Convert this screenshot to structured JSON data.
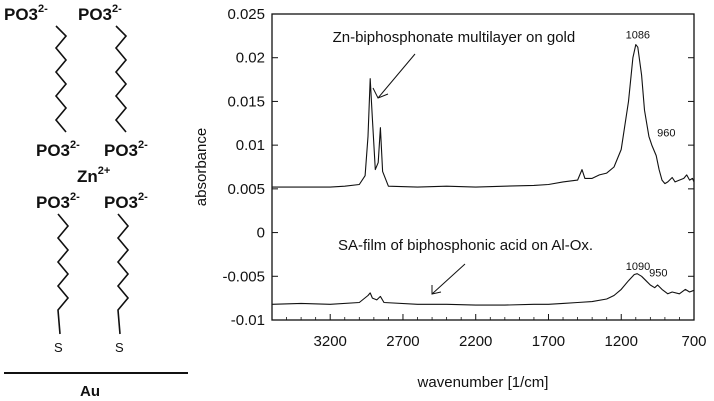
{
  "schematic": {
    "top_groups": [
      "PO3",
      "PO3"
    ],
    "middle_groups": [
      "PO3",
      "PO3"
    ],
    "lower_groups": [
      "PO3",
      "PO3"
    ],
    "charge": "2-",
    "zinc": "Zn",
    "zinc_charge": "2+",
    "sulfur_labels": [
      "S",
      "S"
    ],
    "substrate": "Au"
  },
  "chart_data": {
    "type": "line",
    "title": "",
    "xlabel": "wavenumber [1/cm]",
    "ylabel": "absorbance",
    "xlim": [
      3600,
      700
    ],
    "ylim": [
      -0.01,
      0.025
    ],
    "x_reversed": true,
    "grid": false,
    "x_ticks": [
      "3200",
      "2700",
      "2200",
      "1700",
      "1200",
      "700"
    ],
    "y_ticks": [
      "0.025",
      "0.02",
      "0.015",
      "0.01",
      "0.005",
      "0",
      "-0.005",
      "-0.01"
    ],
    "series": [
      {
        "name": "Zn-biphosphonate multilayer on gold",
        "points": [
          [
            3600,
            0.0052
          ],
          [
            3400,
            0.0052
          ],
          [
            3200,
            0.0052
          ],
          [
            3100,
            0.0053
          ],
          [
            3000,
            0.0055
          ],
          [
            2960,
            0.0065
          ],
          [
            2940,
            0.011
          ],
          [
            2925,
            0.0176
          ],
          [
            2910,
            0.013
          ],
          [
            2890,
            0.0072
          ],
          [
            2870,
            0.008
          ],
          [
            2855,
            0.012
          ],
          [
            2840,
            0.007
          ],
          [
            2800,
            0.0053
          ],
          [
            2600,
            0.0052
          ],
          [
            2400,
            0.0053
          ],
          [
            2200,
            0.0052
          ],
          [
            2000,
            0.0053
          ],
          [
            1800,
            0.0054
          ],
          [
            1700,
            0.0055
          ],
          [
            1600,
            0.0058
          ],
          [
            1500,
            0.006
          ],
          [
            1470,
            0.0072
          ],
          [
            1450,
            0.0062
          ],
          [
            1400,
            0.0062
          ],
          [
            1350,
            0.0066
          ],
          [
            1300,
            0.0068
          ],
          [
            1250,
            0.0075
          ],
          [
            1200,
            0.0095
          ],
          [
            1150,
            0.015
          ],
          [
            1120,
            0.02
          ],
          [
            1100,
            0.0215
          ],
          [
            1086,
            0.0212
          ],
          [
            1060,
            0.018
          ],
          [
            1040,
            0.014
          ],
          [
            1010,
            0.011
          ],
          [
            990,
            0.01
          ],
          [
            960,
            0.0088
          ],
          [
            940,
            0.0072
          ],
          [
            920,
            0.006
          ],
          [
            900,
            0.0056
          ],
          [
            880,
            0.0058
          ],
          [
            850,
            0.0063
          ],
          [
            830,
            0.0058
          ],
          [
            800,
            0.006
          ],
          [
            770,
            0.0062
          ],
          [
            750,
            0.0066
          ],
          [
            730,
            0.006
          ],
          [
            710,
            0.0062
          ],
          [
            700,
            0.0058
          ]
        ]
      },
      {
        "name": "SA-film of biphosphonic acid on Al-Ox.",
        "points": [
          [
            3600,
            -0.0082
          ],
          [
            3400,
            -0.0081
          ],
          [
            3200,
            -0.0082
          ],
          [
            3000,
            -0.008
          ],
          [
            2940,
            -0.0072
          ],
          [
            2925,
            -0.0069
          ],
          [
            2910,
            -0.0075
          ],
          [
            2880,
            -0.0077
          ],
          [
            2855,
            -0.0073
          ],
          [
            2830,
            -0.008
          ],
          [
            2600,
            -0.0082
          ],
          [
            2400,
            -0.0082
          ],
          [
            2200,
            -0.0083
          ],
          [
            2000,
            -0.0083
          ],
          [
            1800,
            -0.0082
          ],
          [
            1700,
            -0.0082
          ],
          [
            1600,
            -0.0081
          ],
          [
            1500,
            -0.008
          ],
          [
            1400,
            -0.0079
          ],
          [
            1300,
            -0.0076
          ],
          [
            1250,
            -0.0072
          ],
          [
            1200,
            -0.0065
          ],
          [
            1150,
            -0.0055
          ],
          [
            1110,
            -0.0048
          ],
          [
            1090,
            -0.0047
          ],
          [
            1060,
            -0.005
          ],
          [
            1030,
            -0.0055
          ],
          [
            1000,
            -0.006
          ],
          [
            970,
            -0.0063
          ],
          [
            950,
            -0.006
          ],
          [
            920,
            -0.0065
          ],
          [
            880,
            -0.007
          ],
          [
            850,
            -0.0068
          ],
          [
            800,
            -0.007
          ],
          [
            760,
            -0.0065
          ],
          [
            730,
            -0.0068
          ],
          [
            700,
            -0.0066
          ]
        ]
      }
    ],
    "annotations": [
      {
        "text": "Zn-biphosphonate multilayer on gold",
        "x": 2350,
        "y": 0.0218
      },
      {
        "text": "1086",
        "x": 1086,
        "y": 0.0222
      },
      {
        "text": "960",
        "x": 890,
        "y": 0.011
      },
      {
        "text": "SA-film of biphosphonic acid on Al-Ox.",
        "x": 2270,
        "y": -0.002
      },
      {
        "text": "1090",
        "x": 1085,
        "y": -0.0043
      },
      {
        "text": "950",
        "x": 945,
        "y": -0.005
      }
    ]
  }
}
